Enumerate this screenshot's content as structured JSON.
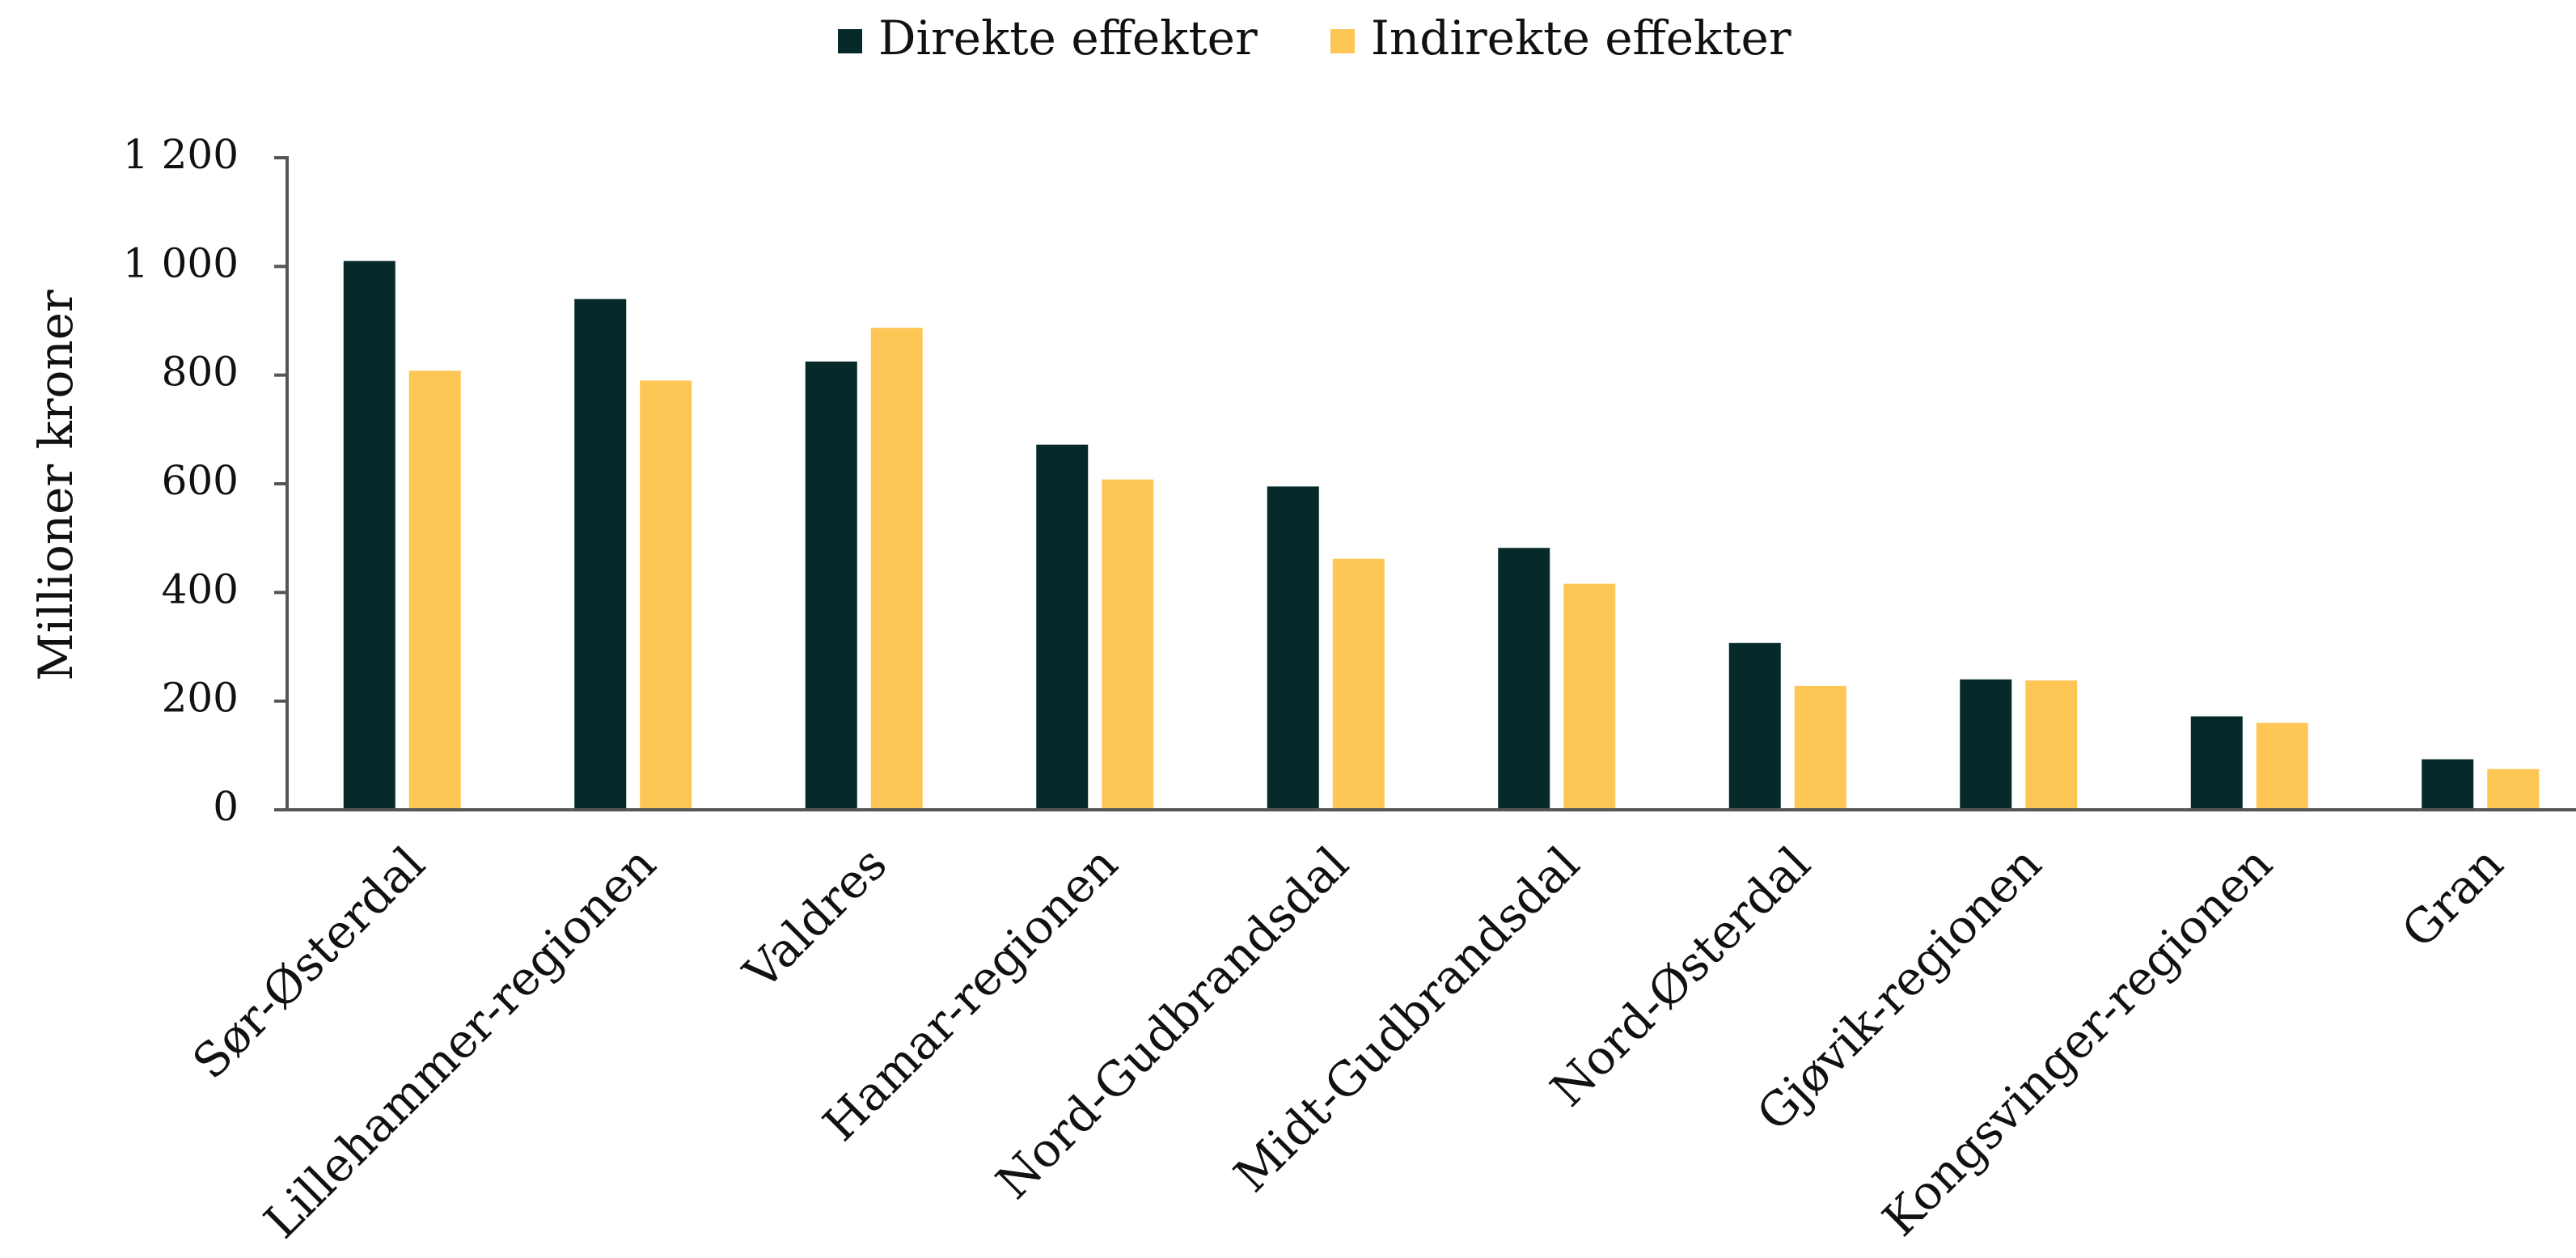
{
  "chart_data": {
    "type": "bar",
    "y_label": "Millioner kroner",
    "categories": [
      "Sør-Østerdal",
      "Lillehammer-regionen",
      "Valdres",
      "Hamar-regionen",
      "Nord-Gudbrandsdal",
      "Midt-Gudbrandsdal",
      "Nord-Østerdal",
      "Gjøvik-regionen",
      "Kongsvinger-regionen",
      "Gran"
    ],
    "series": [
      {
        "name": "Direkte effekter",
        "color": "#062a2a",
        "values": [
          1010,
          940,
          825,
          672,
          595,
          482,
          307,
          240,
          172,
          93
        ]
      },
      {
        "name": "Indirekte effekter",
        "color": "#fec655",
        "values": [
          808,
          790,
          887,
          608,
          462,
          416,
          228,
          238,
          160,
          75
        ]
      }
    ],
    "ylim": [
      0,
      1200
    ],
    "yticks": [
      0,
      200,
      400,
      600,
      800,
      {
        "value": 1000,
        "label": "1 000"
      },
      {
        "value": 1200,
        "label": "1 200"
      }
    ],
    "legend": "top"
  }
}
